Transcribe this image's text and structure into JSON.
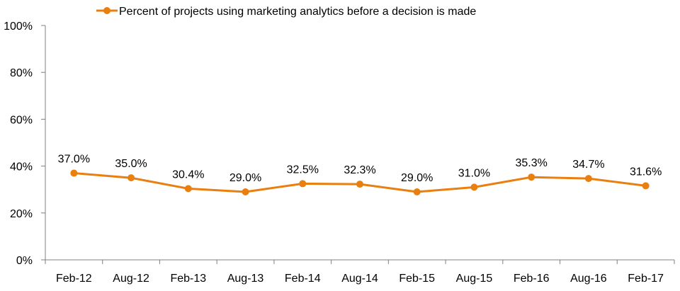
{
  "chart_data": {
    "type": "line",
    "categories": [
      "Feb-12",
      "Aug-12",
      "Feb-13",
      "Aug-13",
      "Feb-14",
      "Aug-14",
      "Feb-15",
      "Aug-15",
      "Feb-16",
      "Aug-16",
      "Feb-17"
    ],
    "series": [
      {
        "name": "Percent of projects using marketing analytics before a decision is made",
        "values": [
          37.0,
          35.0,
          30.4,
          29.0,
          32.5,
          32.3,
          29.0,
          31.0,
          35.3,
          34.7,
          31.6
        ],
        "data_labels": [
          "37.0%",
          "35.0%",
          "30.4%",
          "29.0%",
          "32.5%",
          "32.3%",
          "29.0%",
          "31.0%",
          "35.3%",
          "34.7%",
          "31.6%"
        ]
      }
    ],
    "y_ticks": [
      "0%",
      "20%",
      "40%",
      "60%",
      "80%",
      "100%"
    ],
    "ylim": [
      0,
      100
    ],
    "title": "",
    "xlabel": "",
    "ylabel": "",
    "grid": false,
    "legend_position": "top-left",
    "colors": {
      "series": "#E87F0F",
      "axis": "#808080"
    }
  }
}
